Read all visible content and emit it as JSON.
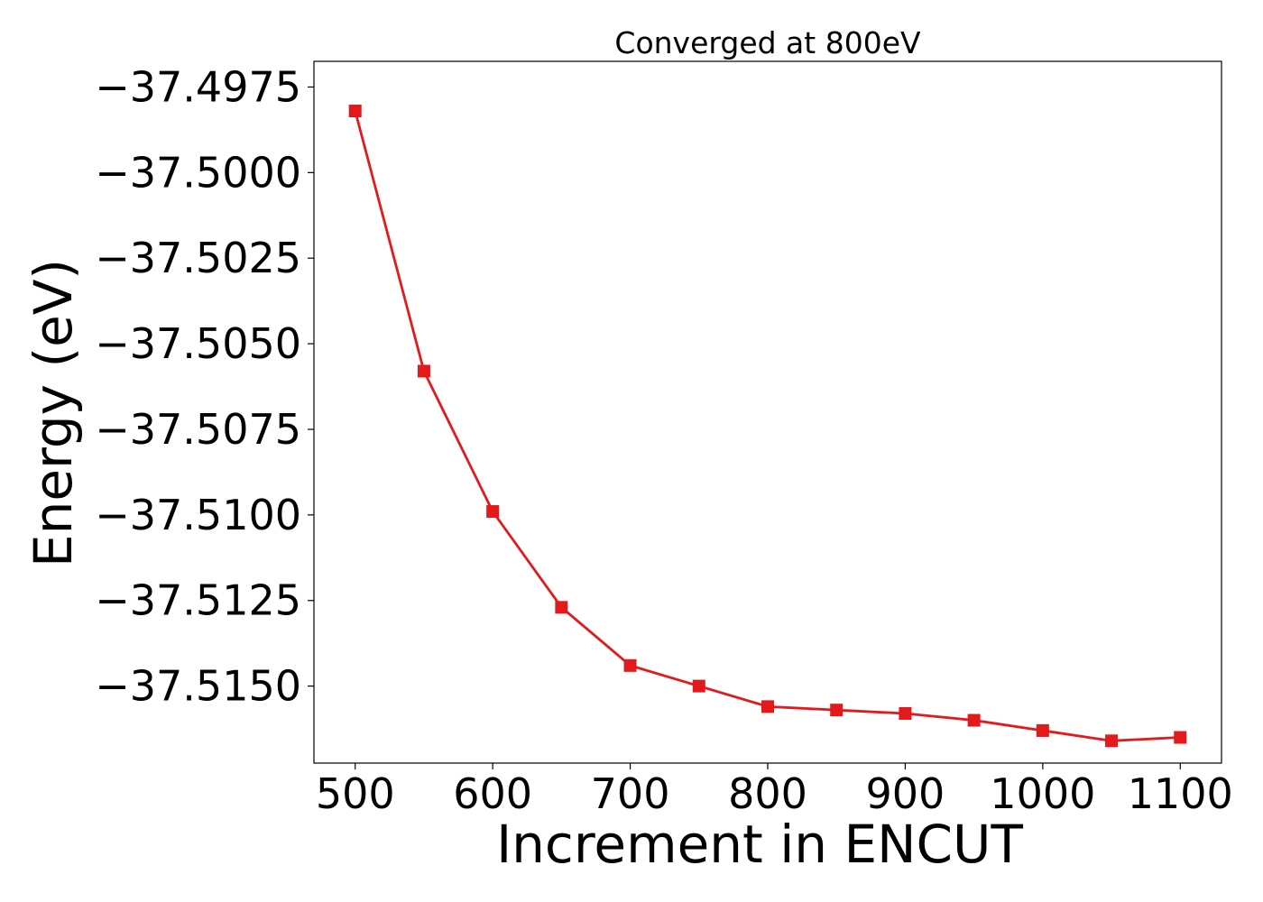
{
  "chart_data": {
    "type": "line",
    "title": "Converged at 800eV",
    "xlabel": "Increment in ENCUT",
    "ylabel": "Energy (eV)",
    "x": [
      500,
      550,
      600,
      650,
      700,
      750,
      800,
      850,
      900,
      950,
      1000,
      1050,
      1100
    ],
    "series": [
      {
        "values": [
          -37.4982,
          -37.5058,
          -37.5099,
          -37.5127,
          -37.5144,
          -37.515,
          -37.5156,
          -37.5157,
          -37.5158,
          -37.516,
          -37.5163,
          -37.5166,
          -37.5165
        ],
        "color": "#e31a1c",
        "marker": "square"
      }
    ],
    "xlim": [
      470,
      1130
    ],
    "ylim": [
      -37.51725,
      -37.49675
    ],
    "xticks": [
      500,
      600,
      700,
      800,
      900,
      1000,
      1100
    ],
    "xtick_labels": [
      "500",
      "600",
      "700",
      "800",
      "900",
      "1000",
      "1100"
    ],
    "yticks": [
      -37.4975,
      -37.5,
      -37.5025,
      -37.505,
      -37.5075,
      -37.51,
      -37.5125,
      -37.515
    ],
    "ytick_labels": [
      "−37.4975",
      "−37.5000",
      "−37.5025",
      "−37.5050",
      "−37.5075",
      "−37.5100",
      "−37.5125",
      "−37.5150"
    ],
    "grid": false,
    "legend": "none"
  }
}
